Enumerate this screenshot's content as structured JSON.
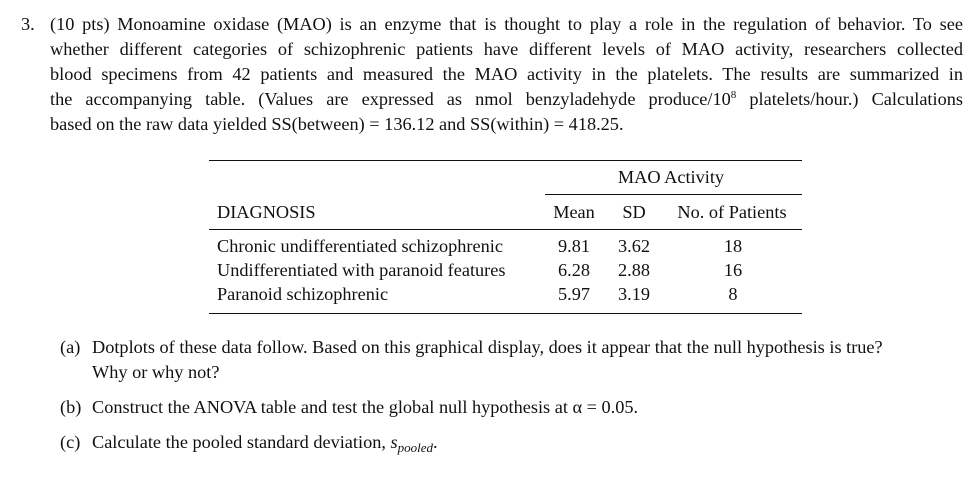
{
  "problem": {
    "number": "3.",
    "lines": [
      "(10 pts) Monoamine oxidase (MAO) is an enzyme that is thought to play a role in the regulation of behavior. To see",
      "whether different categories of schizophrenic patients have different levels of MAO activity, researchers collected",
      "blood specimens from 42 patients and measured the MAO activity in the platelets. The results are summarized in"
    ],
    "line4_pre": "the accompanying table. (Values are expressed as nmol benzyladehyde produce/10",
    "line4_sup": "8",
    "line4_post": " platelets/hour.) Calculations",
    "line5": "based on the raw data yielded SS(between) = 136.12 and SS(within) = 418.25."
  },
  "table": {
    "group_header": "MAO Activity",
    "columns": [
      "DIAGNOSIS",
      "Mean",
      "SD",
      "No. of Patients"
    ],
    "rows": [
      {
        "diagnosis": "Chronic undifferentiated schizophrenic",
        "mean": "9.81",
        "sd": "3.62",
        "n": "18"
      },
      {
        "diagnosis": "Undifferentiated with paranoid features",
        "mean": "6.28",
        "sd": "2.88",
        "n": "16"
      },
      {
        "diagnosis": "Paranoid schizophrenic",
        "mean": "5.97",
        "sd": "3.19",
        "n": "8"
      }
    ]
  },
  "questions": {
    "a": {
      "label": "(a)",
      "line1": "Dotplots of these data follow. Based on this graphical display, does it appear that the null hypothesis is true?",
      "line2": "Why or why not?"
    },
    "b": {
      "label": "(b)",
      "text": "Construct the ANOVA table and test the global null hypothesis at α = 0.05."
    },
    "c": {
      "label": "(c)",
      "text": "Calculate the pooled standard deviation, ",
      "symbol": "s",
      "symbol_sub": "pooled",
      "end": "."
    }
  }
}
